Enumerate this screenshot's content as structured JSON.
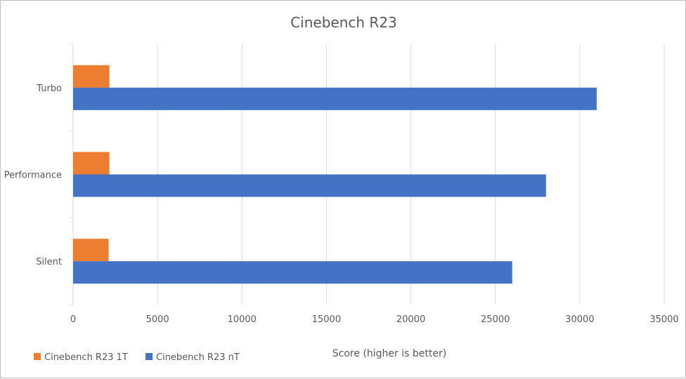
{
  "chart_data": {
    "type": "bar",
    "orientation": "horizontal",
    "title": "Cinebench R23",
    "xlabel": "Score (higher is better)",
    "ylabel": "",
    "categories": [
      "Turbo",
      "Performance",
      "Silent"
    ],
    "series": [
      {
        "name": "Cinebench R23 1T",
        "color": "#ed7d31",
        "values": [
          2150,
          2150,
          2100
        ]
      },
      {
        "name": "Cinebench R23 nT",
        "color": "#4472c4",
        "values": [
          31000,
          28000,
          26000
        ]
      }
    ],
    "xlim": [
      0,
      35000
    ],
    "xticks": [
      "0",
      "5000",
      "10000",
      "15000",
      "20000",
      "25000",
      "30000",
      "35000"
    ],
    "grid": true,
    "legend_position": "bottom-left"
  }
}
